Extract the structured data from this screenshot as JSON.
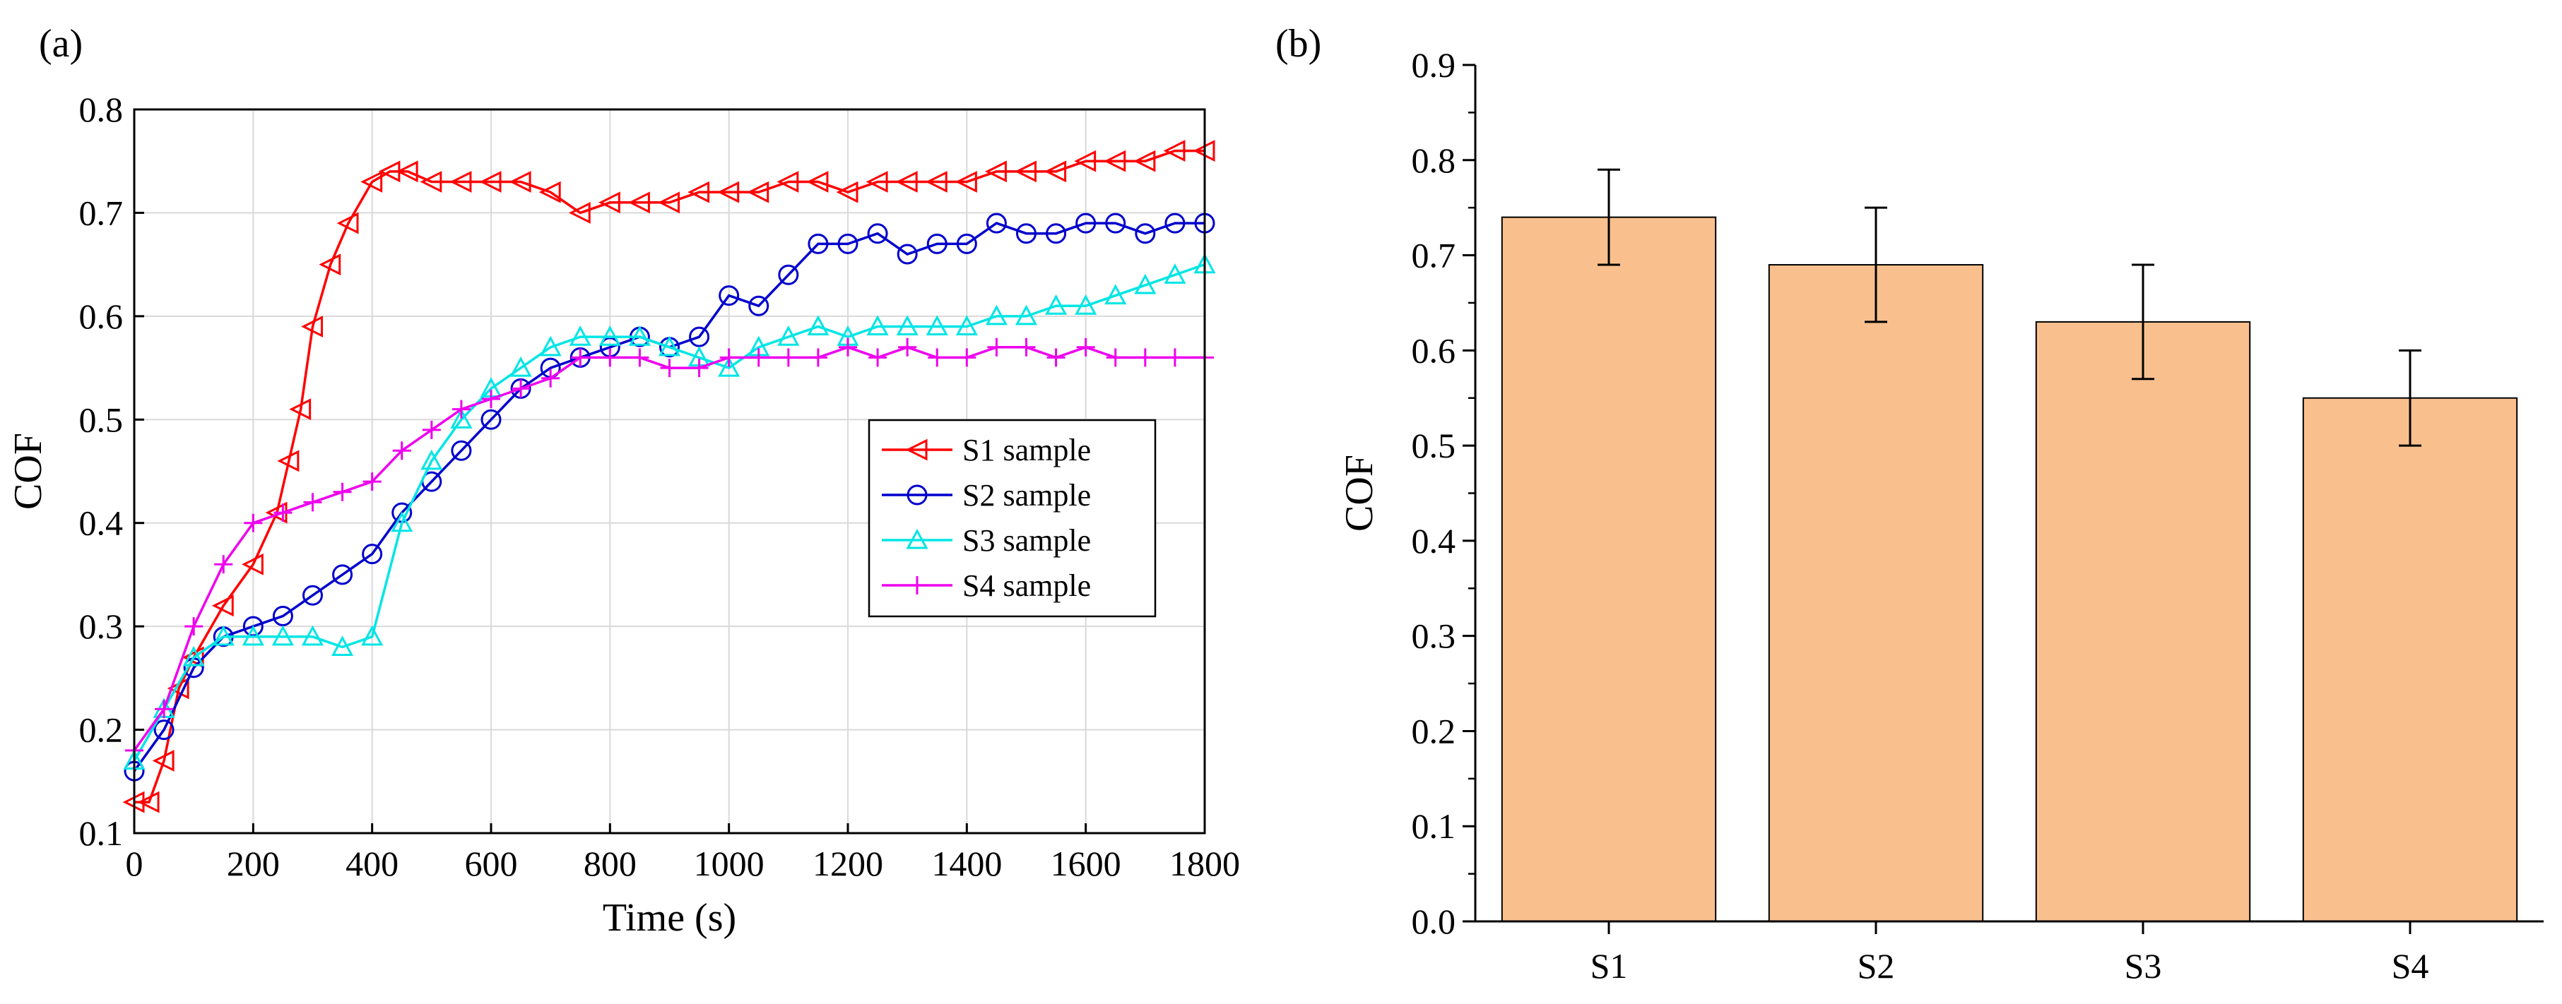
{
  "figure": {
    "panels": [
      "(a)",
      "(b)"
    ]
  },
  "chart_data": [
    {
      "type": "line",
      "panel_label": "(a)",
      "xlabel": "Time (s)",
      "ylabel": "COF",
      "xlim": [
        0,
        1800
      ],
      "ylim": [
        0.1,
        0.8
      ],
      "xticks": [
        "0",
        "200",
        "400",
        "600",
        "800",
        "1000",
        "1200",
        "1400",
        "1600",
        "1800"
      ],
      "yticks": [
        "0.1",
        "0.2",
        "0.3",
        "0.4",
        "0.5",
        "0.6",
        "0.7",
        "0.8"
      ],
      "grid": true,
      "legend_position": "center-right",
      "series": [
        {
          "name": "S1 sample",
          "color": "#ff0000",
          "marker": "triangle-left",
          "x": [
            0,
            25,
            50,
            75,
            100,
            150,
            200,
            240,
            260,
            280,
            300,
            330,
            360,
            400,
            430,
            460,
            500,
            550,
            600,
            650,
            700,
            750,
            800,
            850,
            900,
            950,
            1000,
            1050,
            1100,
            1150,
            1200,
            1250,
            1300,
            1350,
            1400,
            1450,
            1500,
            1550,
            1600,
            1650,
            1700,
            1750,
            1800
          ],
          "y": [
            0.13,
            0.13,
            0.17,
            0.24,
            0.27,
            0.32,
            0.36,
            0.41,
            0.46,
            0.51,
            0.59,
            0.65,
            0.69,
            0.73,
            0.74,
            0.74,
            0.73,
            0.73,
            0.73,
            0.73,
            0.72,
            0.7,
            0.71,
            0.71,
            0.71,
            0.72,
            0.72,
            0.72,
            0.73,
            0.73,
            0.72,
            0.73,
            0.73,
            0.73,
            0.73,
            0.74,
            0.74,
            0.74,
            0.75,
            0.75,
            0.75,
            0.76,
            0.76
          ]
        },
        {
          "name": "S2 sample",
          "color": "#0000cc",
          "marker": "circle",
          "x": [
            0,
            50,
            100,
            150,
            200,
            250,
            300,
            350,
            400,
            450,
            500,
            550,
            600,
            650,
            700,
            750,
            800,
            850,
            900,
            950,
            1000,
            1050,
            1100,
            1150,
            1200,
            1250,
            1300,
            1350,
            1400,
            1450,
            1500,
            1550,
            1600,
            1650,
            1700,
            1750,
            1800
          ],
          "y": [
            0.16,
            0.2,
            0.26,
            0.29,
            0.3,
            0.31,
            0.33,
            0.35,
            0.37,
            0.41,
            0.44,
            0.47,
            0.5,
            0.53,
            0.55,
            0.56,
            0.57,
            0.58,
            0.57,
            0.58,
            0.62,
            0.61,
            0.64,
            0.67,
            0.67,
            0.68,
            0.66,
            0.67,
            0.67,
            0.69,
            0.68,
            0.68,
            0.69,
            0.69,
            0.68,
            0.69,
            0.69
          ]
        },
        {
          "name": "S3 sample",
          "color": "#00e5e5",
          "marker": "triangle-up",
          "x": [
            0,
            50,
            100,
            150,
            200,
            250,
            300,
            350,
            400,
            450,
            500,
            550,
            600,
            650,
            700,
            750,
            800,
            850,
            900,
            950,
            1000,
            1050,
            1100,
            1150,
            1200,
            1250,
            1300,
            1350,
            1400,
            1450,
            1500,
            1550,
            1600,
            1650,
            1700,
            1750,
            1800
          ],
          "y": [
            0.17,
            0.22,
            0.27,
            0.29,
            0.29,
            0.29,
            0.29,
            0.28,
            0.29,
            0.4,
            0.46,
            0.5,
            0.53,
            0.55,
            0.57,
            0.58,
            0.58,
            0.58,
            0.57,
            0.56,
            0.55,
            0.57,
            0.58,
            0.59,
            0.58,
            0.59,
            0.59,
            0.59,
            0.59,
            0.6,
            0.6,
            0.61,
            0.61,
            0.62,
            0.63,
            0.64,
            0.65
          ]
        },
        {
          "name": "S4 sample",
          "color": "#ee00ee",
          "marker": "plus",
          "x": [
            0,
            50,
            100,
            150,
            200,
            250,
            300,
            350,
            400,
            450,
            500,
            550,
            600,
            650,
            700,
            750,
            800,
            850,
            900,
            950,
            1000,
            1050,
            1100,
            1150,
            1200,
            1250,
            1300,
            1350,
            1400,
            1450,
            1500,
            1550,
            1600,
            1650,
            1700,
            1750,
            1800
          ],
          "y": [
            0.18,
            0.22,
            0.3,
            0.36,
            0.4,
            0.41,
            0.42,
            0.43,
            0.44,
            0.47,
            0.49,
            0.51,
            0.52,
            0.53,
            0.54,
            0.56,
            0.56,
            0.56,
            0.55,
            0.55,
            0.56,
            0.56,
            0.56,
            0.56,
            0.57,
            0.56,
            0.57,
            0.56,
            0.56,
            0.57,
            0.57,
            0.56,
            0.57,
            0.56,
            0.56,
            0.56,
            0.56
          ]
        }
      ]
    },
    {
      "type": "bar",
      "panel_label": "(b)",
      "xlabel": "",
      "ylabel": "COF",
      "categories": [
        "S1",
        "S2",
        "S3",
        "S4"
      ],
      "values": [
        0.74,
        0.69,
        0.63,
        0.55
      ],
      "errors": [
        0.05,
        0.06,
        0.06,
        0.05
      ],
      "ylim": [
        0.0,
        0.9
      ],
      "yticks": [
        "0.0",
        "0.1",
        "0.2",
        "0.3",
        "0.4",
        "0.5",
        "0.6",
        "0.7",
        "0.8",
        "0.9"
      ],
      "bar_color": "#f9c08e",
      "grid": false
    }
  ]
}
